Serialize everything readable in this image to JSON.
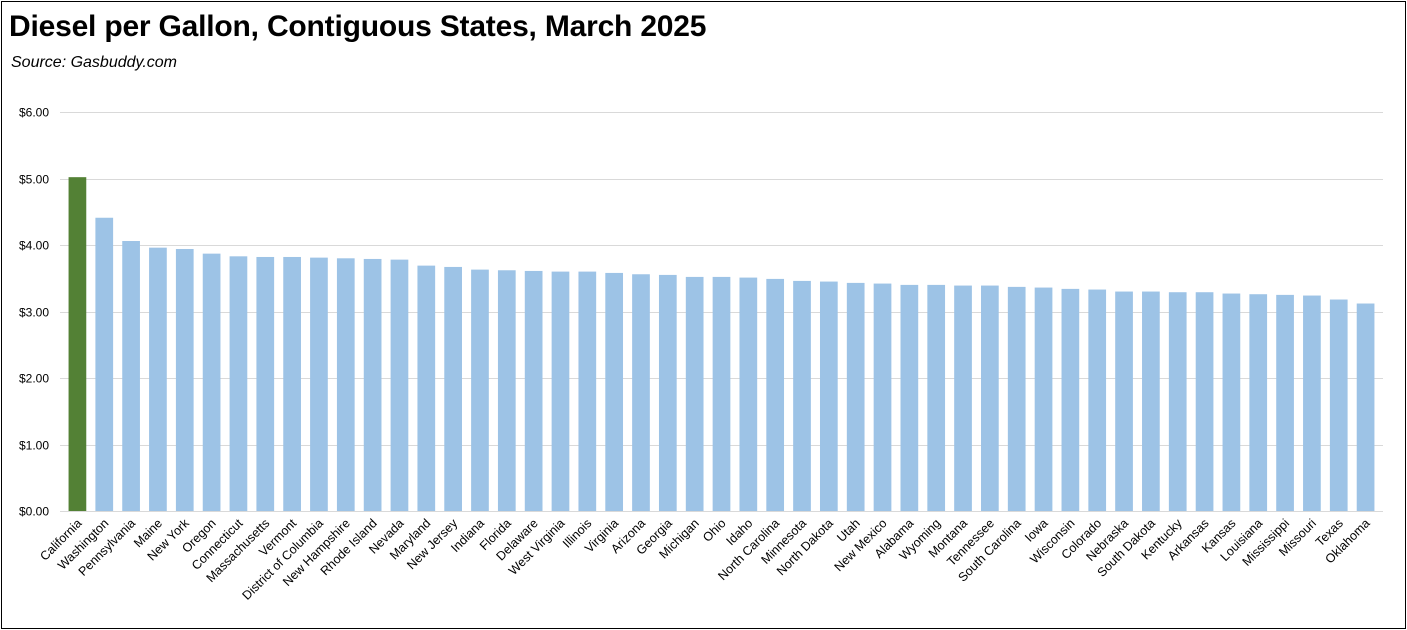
{
  "chart_data": {
    "type": "bar",
    "title": "Diesel per Gallon, Contiguous States, March 2025",
    "subtitle": "Source:  Gasbuddy.com",
    "xlabel": "",
    "ylabel": "",
    "ylim": [
      0,
      6
    ],
    "y_ticks": [
      0,
      1,
      2,
      3,
      4,
      5,
      6
    ],
    "y_tick_labels": [
      "$0.00",
      "$1.00",
      "$2.00",
      "$3.00",
      "$4.00",
      "$5.00",
      "$6.00"
    ],
    "grid": true,
    "legend": "none",
    "colors": {
      "highlight": "#538135",
      "default": "#9DC3E6",
      "grid": "#D9D9D9"
    },
    "highlight_category": "California",
    "categories": [
      "California",
      "Washington",
      "Pennsylvania",
      "Maine",
      "New York",
      "Oregon",
      "Connecticut",
      "Massachusetts",
      "Vermont",
      "District of Columbia",
      "New Hampshire",
      "Rhode Island",
      "Nevada",
      "Maryland",
      "New Jersey",
      "Indiana",
      "Florida",
      "Delaware",
      "West Virginia",
      "Illinois",
      "Virginia",
      "Arizona",
      "Georgia",
      "Michigan",
      "Ohio",
      "Idaho",
      "North Carolina",
      "Minnesota",
      "North Dakota",
      "Utah",
      "New Mexico",
      "Alabama",
      "Wyoming",
      "Montana",
      "Tennessee",
      "South Carolina",
      "Iowa",
      "Wisconsin",
      "Colorado",
      "Nebraska",
      "South Dakota",
      "Kentucky",
      "Arkansas",
      "Kansas",
      "Louisiana",
      "Mississippi",
      "Missouri",
      "Texas",
      "Oklahoma"
    ],
    "values": [
      5.02,
      4.41,
      4.06,
      3.96,
      3.94,
      3.87,
      3.83,
      3.82,
      3.82,
      3.81,
      3.8,
      3.79,
      3.78,
      3.69,
      3.67,
      3.63,
      3.62,
      3.61,
      3.6,
      3.6,
      3.58,
      3.56,
      3.55,
      3.52,
      3.52,
      3.51,
      3.49,
      3.46,
      3.45,
      3.43,
      3.42,
      3.4,
      3.4,
      3.39,
      3.39,
      3.37,
      3.36,
      3.34,
      3.33,
      3.3,
      3.3,
      3.29,
      3.29,
      3.27,
      3.26,
      3.25,
      3.24,
      3.18,
      3.12
    ]
  }
}
